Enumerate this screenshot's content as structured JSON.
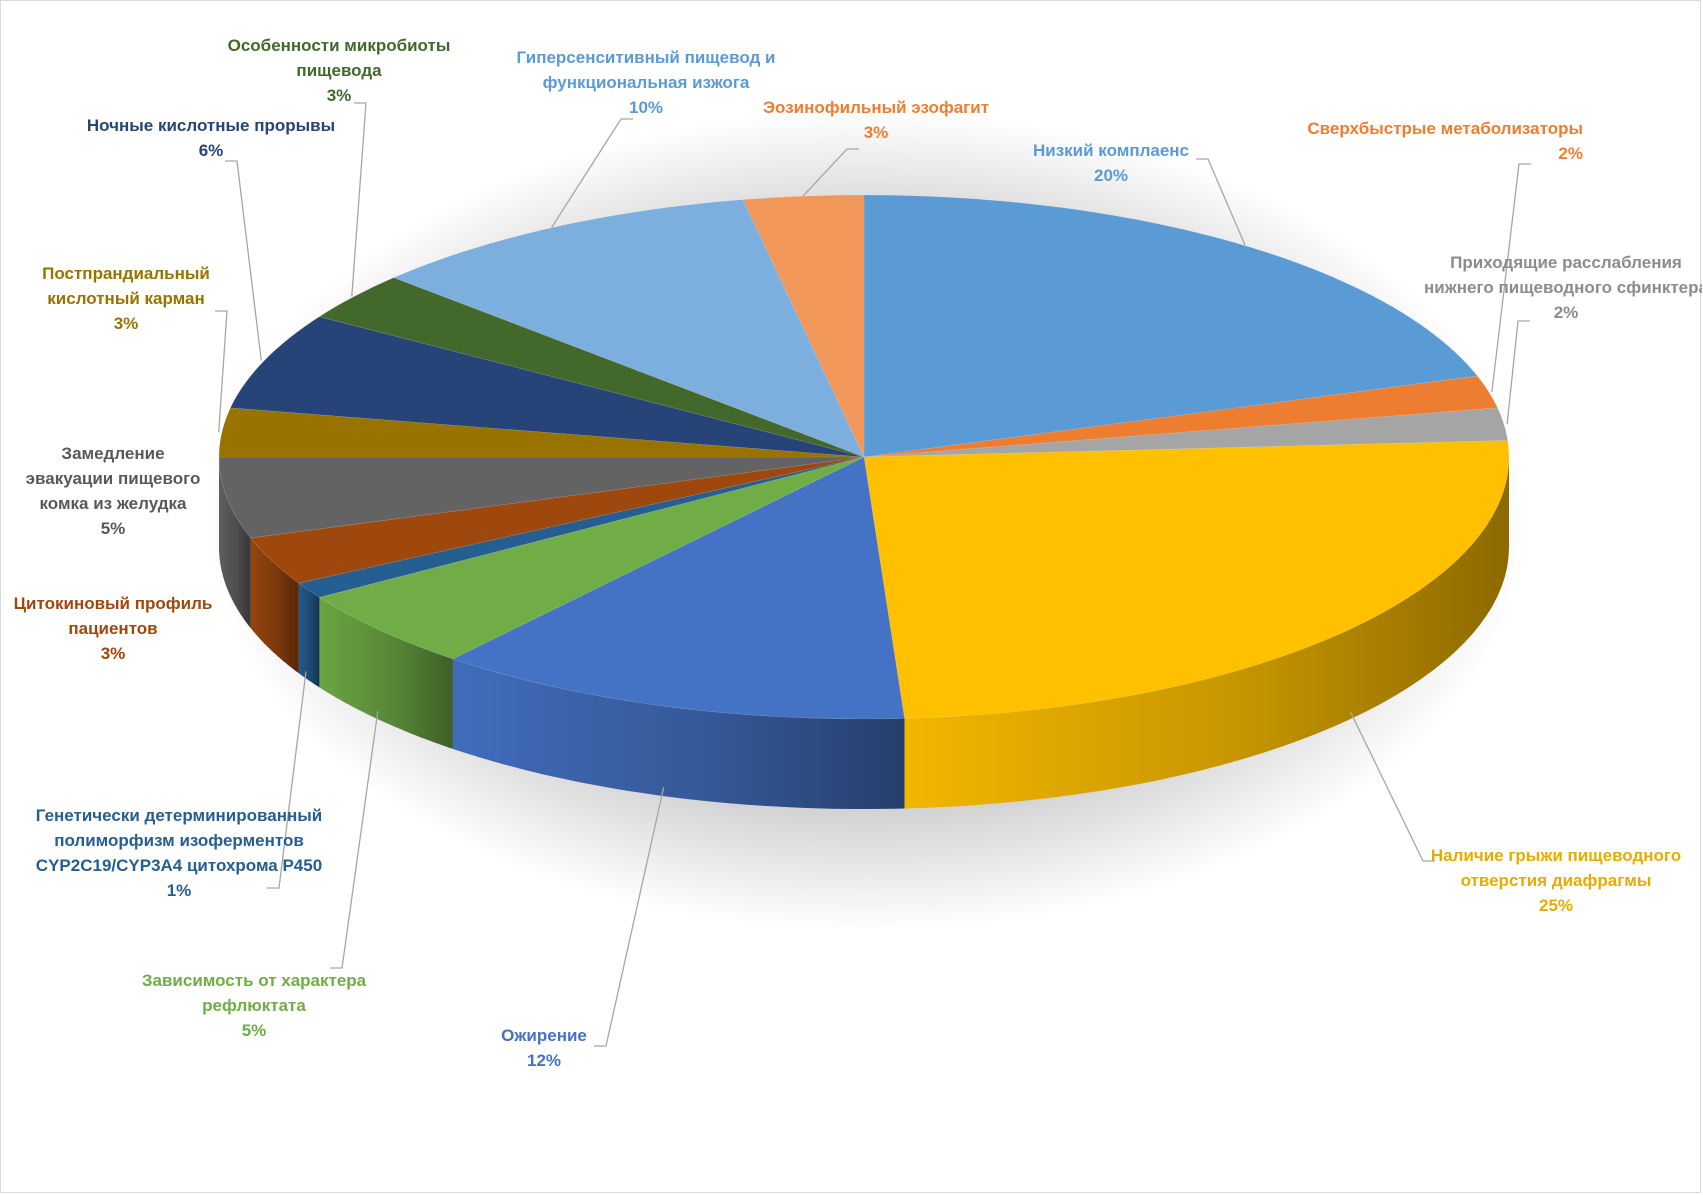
{
  "chart_data": {
    "type": "pie",
    "title": "",
    "legend": "none",
    "slices": [
      {
        "name": "Низкий комплаенс",
        "lines": [
          "Низкий комплаенс"
        ],
        "value": 20,
        "label": "20%",
        "color": "#5B9BD5"
      },
      {
        "name": "Сверхбыстрые метаболизаторы",
        "lines": [
          "Сверхбыстрые метаболизаторы"
        ],
        "value": 2,
        "label": "2%",
        "color": "#ED7D31"
      },
      {
        "name": "Приходящие расслабления нижнего пищеводного сфинктера",
        "lines": [
          "Приходящие расслабления",
          "нижнего пищеводного сфинктера"
        ],
        "value": 2,
        "label": "2%",
        "color": "#A5A5A5"
      },
      {
        "name": "Наличие грыжи пищеводного отверстия диафрагмы",
        "lines": [
          "Наличие грыжи пищеводного",
          "отверстия диафрагмы"
        ],
        "value": 25,
        "label": "25%",
        "color": "#FFC000"
      },
      {
        "name": "Ожирение",
        "lines": [
          "Ожирение"
        ],
        "value": 12,
        "label": "12%",
        "color": "#4472C4"
      },
      {
        "name": "Зависимость от характера рефлюктата",
        "lines": [
          "Зависимость от характера",
          "рефлюктата"
        ],
        "value": 5,
        "label": "5%",
        "color": "#70AD47"
      },
      {
        "name": "Генетически детерминированный полиморфизм изоферментов CYP2C19/CYP3A4 цитохрома P450",
        "lines": [
          "Генетически детерминированный",
          "полиморфизм изоферментов",
          "CYP2C19/CYP3A4 цитохрома P450"
        ],
        "value": 1,
        "label": "1%",
        "color": "#255E91"
      },
      {
        "name": "Цитокиновый профиль пациентов",
        "lines": [
          "Цитокиновый профиль",
          "пациентов"
        ],
        "value": 3,
        "label": "3%",
        "color": "#9E480E"
      },
      {
        "name": "Замедление эвакуации пищевого комка из желудка",
        "lines": [
          "Замедление",
          "эвакуации пищевого",
          "комка из желудка"
        ],
        "value": 5,
        "label": "5%",
        "color": "#636363"
      },
      {
        "name": "Постпрандиальный кислотный карман",
        "lines": [
          "Постпрандиальный",
          "кислотный карман"
        ],
        "value": 3,
        "label": "3%",
        "color": "#997300"
      },
      {
        "name": "Ночные кислотные прорывы",
        "lines": [
          "Ночные кислотные прорывы"
        ],
        "value": 6,
        "label": "6%",
        "color": "#264478"
      },
      {
        "name": "Особенности микробиоты пищевода",
        "lines": [
          "Особенности микробиоты",
          "пищевода"
        ],
        "value": 3,
        "label": "3%",
        "color": "#43682B"
      },
      {
        "name": "Гиперсенситивный пищевод и функциональная изжога",
        "lines": [
          "Гиперсенситивный пищевод и",
          "функциональная изжога"
        ],
        "value": 10,
        "label": "10%",
        "color": "#7CAFDD"
      },
      {
        "name": "Эозинофильный эзофагит",
        "lines": [
          "Эозинофильный эзофагит"
        ],
        "value": 3,
        "label": "3%",
        "color": "#F1975A"
      }
    ]
  }
}
